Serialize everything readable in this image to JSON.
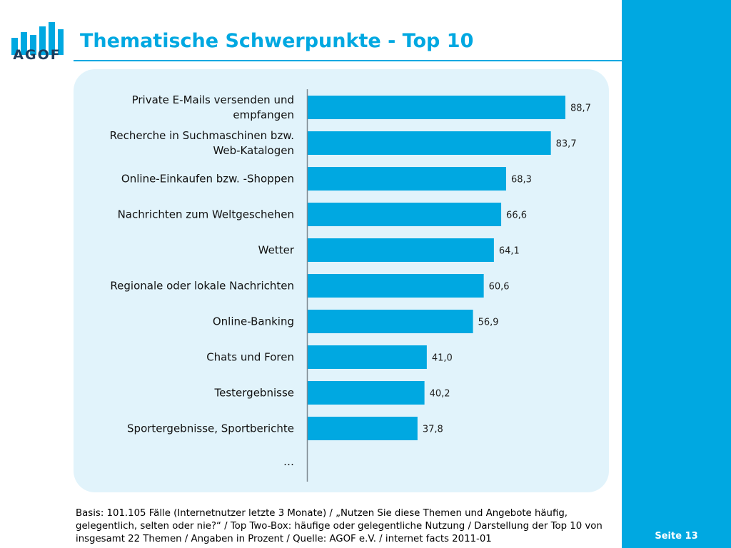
{
  "brand": {
    "logo_text": "AGOF",
    "accent_color": "#00a8e1",
    "logo_text_color": "#1f3d5c"
  },
  "header": {
    "title": "Thematische Schwerpunkte - Top 10"
  },
  "chart_data": {
    "type": "bar",
    "orientation": "horizontal",
    "categories": [
      "Private E-Mails versenden und empfangen",
      "Recherche in Suchmaschinen bzw. Web-Katalogen",
      "Online-Einkaufen bzw. -Shoppen",
      "Nachrichten zum Weltgeschehen",
      "Wetter",
      "Regionale oder lokale Nachrichten",
      "Online-Banking",
      "Chats und Foren",
      "Testergebnisse",
      "Sportergebnisse, Sportberichte"
    ],
    "category_lines": [
      [
        "Private E-Mails versenden und",
        "empfangen"
      ],
      [
        "Recherche in Suchmaschinen bzw.",
        "Web-Katalogen"
      ],
      [
        "Online-Einkaufen bzw. -Shoppen"
      ],
      [
        "Nachrichten zum Weltgeschehen"
      ],
      [
        "Wetter"
      ],
      [
        "Regionale oder lokale Nachrichten"
      ],
      [
        "Online-Banking"
      ],
      [
        "Chats und Foren"
      ],
      [
        "Testergebnisse"
      ],
      [
        "Sportergebnisse, Sportberichte"
      ]
    ],
    "values": [
      88.7,
      83.7,
      68.3,
      66.6,
      64.1,
      60.6,
      56.9,
      41.0,
      40.2,
      37.8
    ],
    "value_labels": [
      "88,7",
      "83,7",
      "68,3",
      "66,6",
      "64,1",
      "60,6",
      "56,9",
      "41,0",
      "40,2",
      "37,8"
    ],
    "trailing_label": "…",
    "xlim": [
      0,
      100
    ],
    "grid": false,
    "legend": "none",
    "bar_color": "#00a8e1",
    "panel_color": "#e1f3fb"
  },
  "footer": {
    "note": "Basis: 101.105 Fälle (Internetnutzer letzte 3 Monate) / „Nutzen Sie diese Themen und Angebote häufig, gelegentlich, selten oder nie?“ / Top Two-Box: häufige oder gelegentliche Nutzung / Darstellung der Top 10 von insgesamt 22 Themen / Angaben in Prozent / Quelle: AGOF e.V. / internet facts 2011-01",
    "page_label": "Seite 13"
  }
}
